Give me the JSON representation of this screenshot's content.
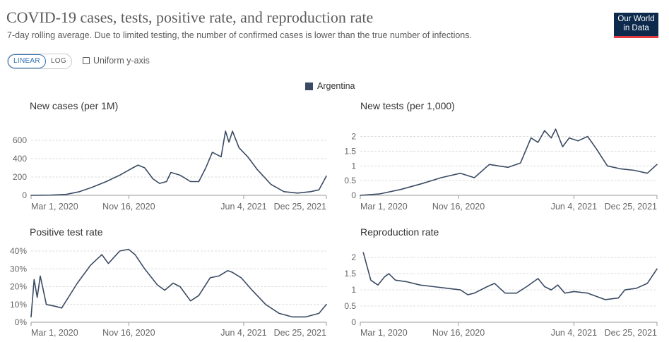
{
  "header": {
    "title": "COVID-19 cases, tests, positive rate, and reproduction rate",
    "subtitle": "7-day rolling average. Due to limited testing, the number of confirmed cases is lower than the true number of infections.",
    "logo_line1": "Our World",
    "logo_line2": "in Data"
  },
  "controls": {
    "linear_label": "LINEAR",
    "log_label": "LOG",
    "uniform_label": "Uniform y-axis"
  },
  "legend": {
    "label": "Argentina",
    "color": "#3a4a63"
  },
  "chart_data": [
    {
      "type": "line",
      "title": "New cases (per 1M)",
      "x_ticks": [
        "Mar 1, 2020",
        "Nov 16, 2020",
        "Jun 4, 2021",
        "Dec 25, 2021"
      ],
      "x_range": [
        "2020-03-01",
        "2022-01-06"
      ],
      "ylim": [
        0,
        700
      ],
      "y_ticks": [
        0,
        200,
        400,
        600
      ],
      "y_tick_labels": [
        "0",
        "200",
        "400",
        "600"
      ],
      "grid": true,
      "series": [
        {
          "name": "Argentina",
          "color": "#3a4a63",
          "points": [
            [
              "2020-03-01",
              0
            ],
            [
              "2020-04-15",
              2
            ],
            [
              "2020-05-20",
              10
            ],
            [
              "2020-06-20",
              40
            ],
            [
              "2020-07-20",
              90
            ],
            [
              "2020-08-20",
              150
            ],
            [
              "2020-09-20",
              220
            ],
            [
              "2020-10-05",
              260
            ],
            [
              "2020-10-20",
              300
            ],
            [
              "2020-11-01",
              330
            ],
            [
              "2020-11-16",
              300
            ],
            [
              "2020-12-05",
              180
            ],
            [
              "2020-12-20",
              130
            ],
            [
              "2021-01-05",
              150
            ],
            [
              "2021-01-15",
              250
            ],
            [
              "2021-02-05",
              220
            ],
            [
              "2021-03-01",
              150
            ],
            [
              "2021-03-20",
              150
            ],
            [
              "2021-04-05",
              300
            ],
            [
              "2021-04-20",
              470
            ],
            [
              "2021-05-10",
              420
            ],
            [
              "2021-05-20",
              700
            ],
            [
              "2021-05-28",
              580
            ],
            [
              "2021-06-05",
              700
            ],
            [
              "2021-06-20",
              520
            ],
            [
              "2021-07-10",
              420
            ],
            [
              "2021-08-01",
              280
            ],
            [
              "2021-09-01",
              120
            ],
            [
              "2021-10-01",
              40
            ],
            [
              "2021-11-01",
              25
            ],
            [
              "2021-12-01",
              40
            ],
            [
              "2021-12-20",
              60
            ],
            [
              "2022-01-06",
              210
            ]
          ]
        }
      ]
    },
    {
      "type": "line",
      "title": "New tests (per 1,000)",
      "x_ticks": [
        "Mar 1, 2020",
        "Nov 16, 2020",
        "Jun 4, 2021",
        "Dec 25, 2021"
      ],
      "x_range": [
        "2020-03-01",
        "2022-01-06"
      ],
      "ylim": [
        0,
        2.3
      ],
      "y_ticks": [
        0,
        0.5,
        1,
        1.5,
        2
      ],
      "y_tick_labels": [
        "0",
        "0.5",
        "1",
        "1.5",
        "2"
      ],
      "grid": true,
      "series": [
        {
          "name": "Argentina",
          "color": "#3a4a63",
          "points": [
            [
              "2020-03-01",
              0
            ],
            [
              "2020-04-15",
              0.05
            ],
            [
              "2020-06-01",
              0.2
            ],
            [
              "2020-07-20",
              0.4
            ],
            [
              "2020-09-01",
              0.6
            ],
            [
              "2020-10-15",
              0.75
            ],
            [
              "2020-11-16",
              0.6
            ],
            [
              "2020-12-20",
              1.05
            ],
            [
              "2021-01-10",
              1.0
            ],
            [
              "2021-02-01",
              0.95
            ],
            [
              "2021-03-01",
              1.1
            ],
            [
              "2021-03-25",
              1.95
            ],
            [
              "2021-04-10",
              1.8
            ],
            [
              "2021-04-25",
              2.2
            ],
            [
              "2021-05-10",
              1.95
            ],
            [
              "2021-05-20",
              2.25
            ],
            [
              "2021-06-05",
              1.65
            ],
            [
              "2021-06-20",
              1.95
            ],
            [
              "2021-07-10",
              1.85
            ],
            [
              "2021-08-01",
              2.0
            ],
            [
              "2021-08-20",
              1.6
            ],
            [
              "2021-09-15",
              1.0
            ],
            [
              "2021-10-15",
              0.9
            ],
            [
              "2021-11-15",
              0.85
            ],
            [
              "2021-12-15",
              0.75
            ],
            [
              "2022-01-06",
              1.05
            ]
          ]
        }
      ]
    },
    {
      "type": "line",
      "title": "Positive test rate",
      "x_ticks": [
        "Mar 1, 2020",
        "Nov 16, 2020",
        "Jun 4, 2021",
        "Dec 25, 2021"
      ],
      "x_range": [
        "2020-03-01",
        "2022-01-06"
      ],
      "ylim": [
        0,
        42
      ],
      "y_ticks": [
        0,
        10,
        20,
        30,
        40
      ],
      "y_tick_labels": [
        "0%",
        "10%",
        "20%",
        "30%",
        "40%"
      ],
      "grid": true,
      "series": [
        {
          "name": "Argentina",
          "color": "#3a4a63",
          "points": [
            [
              "2020-03-01",
              3
            ],
            [
              "2020-03-08",
              24
            ],
            [
              "2020-03-15",
              14
            ],
            [
              "2020-03-22",
              26
            ],
            [
              "2020-04-05",
              10
            ],
            [
              "2020-04-25",
              9
            ],
            [
              "2020-05-10",
              8
            ],
            [
              "2020-06-15",
              22
            ],
            [
              "2020-07-15",
              32
            ],
            [
              "2020-08-10",
              38
            ],
            [
              "2020-08-25",
              33
            ],
            [
              "2020-09-20",
              40
            ],
            [
              "2020-10-10",
              41
            ],
            [
              "2020-10-25",
              38
            ],
            [
              "2020-11-16",
              30
            ],
            [
              "2020-12-15",
              21
            ],
            [
              "2021-01-01",
              18
            ],
            [
              "2021-01-20",
              22
            ],
            [
              "2021-02-05",
              20
            ],
            [
              "2021-03-01",
              12
            ],
            [
              "2021-03-20",
              15
            ],
            [
              "2021-04-15",
              25
            ],
            [
              "2021-05-05",
              26
            ],
            [
              "2021-05-25",
              29
            ],
            [
              "2021-06-05",
              28
            ],
            [
              "2021-06-25",
              25
            ],
            [
              "2021-07-20",
              18
            ],
            [
              "2021-08-20",
              10
            ],
            [
              "2021-09-20",
              5
            ],
            [
              "2021-10-20",
              3
            ],
            [
              "2021-11-20",
              3
            ],
            [
              "2021-12-20",
              5
            ],
            [
              "2022-01-06",
              10
            ]
          ]
        }
      ]
    },
    {
      "type": "line",
      "title": "Reproduction rate",
      "x_ticks": [
        "Mar 1, 2020",
        "Nov 16, 2020",
        "Jun 4, 2021",
        "Dec 25, 2021"
      ],
      "x_range": [
        "2020-03-01",
        "2022-01-06"
      ],
      "ylim": [
        0,
        2.2
      ],
      "y_ticks": [
        0,
        0.5,
        1,
        1.5,
        2
      ],
      "y_tick_labels": [
        "0",
        "0.5",
        "1",
        "1.5",
        "2"
      ],
      "grid": true,
      "series": [
        {
          "name": "Argentina",
          "color": "#3a4a63",
          "points": [
            [
              "2020-03-08",
              2.15
            ],
            [
              "2020-03-25",
              1.3
            ],
            [
              "2020-04-10",
              1.15
            ],
            [
              "2020-04-25",
              1.4
            ],
            [
              "2020-05-05",
              1.5
            ],
            [
              "2020-05-20",
              1.3
            ],
            [
              "2020-06-15",
              1.25
            ],
            [
              "2020-07-15",
              1.15
            ],
            [
              "2020-08-15",
              1.1
            ],
            [
              "2020-09-15",
              1.05
            ],
            [
              "2020-10-15",
              1.0
            ],
            [
              "2020-11-01",
              0.85
            ],
            [
              "2020-11-16",
              0.9
            ],
            [
              "2020-12-15",
              1.1
            ],
            [
              "2021-01-01",
              1.2
            ],
            [
              "2021-01-25",
              0.9
            ],
            [
              "2021-02-20",
              0.9
            ],
            [
              "2021-03-15",
              1.1
            ],
            [
              "2021-04-10",
              1.35
            ],
            [
              "2021-04-25",
              1.1
            ],
            [
              "2021-05-10",
              1.0
            ],
            [
              "2021-05-25",
              1.15
            ],
            [
              "2021-06-10",
              0.9
            ],
            [
              "2021-07-01",
              0.95
            ],
            [
              "2021-08-01",
              0.9
            ],
            [
              "2021-09-10",
              0.7
            ],
            [
              "2021-10-10",
              0.75
            ],
            [
              "2021-10-25",
              1.0
            ],
            [
              "2021-11-20",
              1.05
            ],
            [
              "2021-12-15",
              1.2
            ],
            [
              "2022-01-06",
              1.65
            ]
          ]
        }
      ]
    }
  ]
}
